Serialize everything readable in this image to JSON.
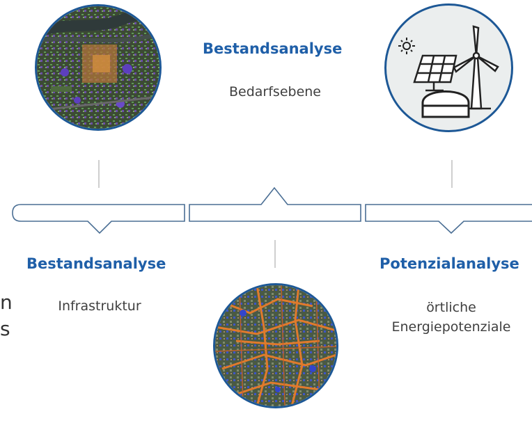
{
  "top_center": {
    "heading": "Bestandsanalyse",
    "sub": "Bedarfsebene"
  },
  "left": {
    "heading": "Bestandsanalyse",
    "sub": "Infrastruktur"
  },
  "right": {
    "heading": "Potenzialanalyse",
    "sub_line1": "örtliche",
    "sub_line2": "Energiepotenziale"
  },
  "edge_text": {
    "line1": "n",
    "line2": "s"
  },
  "colors": {
    "heading": "#1f5fa8",
    "circle_border": "#1d5896",
    "icon_bg": "#ebeeee",
    "connector": "#4a6e94"
  },
  "icons": [
    "solar-panel-icon",
    "sun-icon",
    "wind-turbine-icon",
    "biogas-dome-icon"
  ]
}
